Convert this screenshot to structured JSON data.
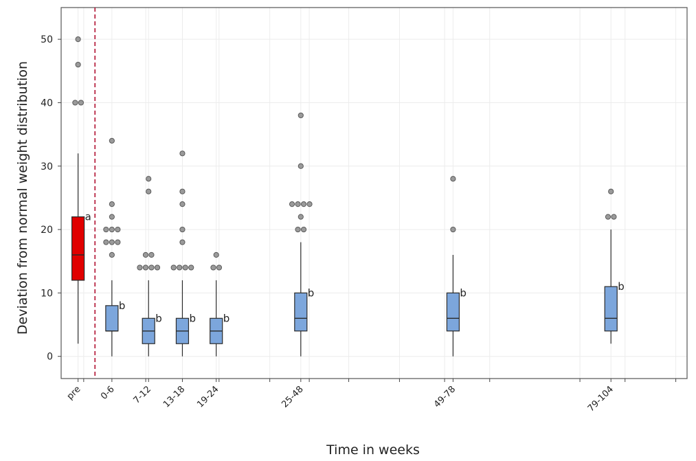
{
  "chart_data": {
    "type": "boxplot",
    "title": "",
    "xlabel": "Time in weeks",
    "ylabel": "Deviation from normal weight distribution",
    "ylim": [
      -3.5,
      55
    ],
    "yticks": [
      0,
      10,
      20,
      30,
      40,
      50
    ],
    "x_axis_weeks": [
      -6,
      105
    ],
    "x_minor_ticks": [
      -2,
      9,
      22,
      31,
      38,
      45,
      54,
      62,
      70,
      86,
      94,
      103
    ],
    "separator_after": "pre",
    "colors": {
      "pre_fill": "#e00000",
      "post_fill": "#7ca6dc",
      "box_stroke": "#2a2a2a",
      "separator": "#b01030",
      "outlier": "#9a9a9a",
      "grid": "#ececec"
    },
    "groups": [
      {
        "label": "pre",
        "pos_weeks": -3,
        "whisker_low": 2,
        "q1": 12,
        "median": 16,
        "q3": 22,
        "whisker_high": 32,
        "outliers": [
          40,
          40,
          46,
          50
        ],
        "letter": "a"
      },
      {
        "label": "0-6",
        "pos_weeks": 3,
        "whisker_low": 0,
        "q1": 4,
        "median": 4,
        "q3": 8,
        "whisker_high": 12,
        "outliers": [
          16,
          18,
          18,
          18,
          20,
          20,
          20,
          22,
          24,
          34
        ],
        "letter": "b"
      },
      {
        "label": "7-12",
        "pos_weeks": 9.5,
        "whisker_low": 0,
        "q1": 2,
        "median": 4,
        "q3": 6,
        "whisker_high": 12,
        "outliers": [
          14,
          14,
          14,
          14,
          16,
          16,
          26,
          28
        ],
        "letter": "b"
      },
      {
        "label": "13-18",
        "pos_weeks": 15.5,
        "whisker_low": 0,
        "q1": 2,
        "median": 4,
        "q3": 6,
        "whisker_high": 12,
        "outliers": [
          14,
          14,
          14,
          14,
          18,
          20,
          24,
          26,
          32
        ],
        "letter": "b"
      },
      {
        "label": "19-24",
        "pos_weeks": 21.5,
        "whisker_low": 0,
        "q1": 2,
        "median": 4,
        "q3": 6,
        "whisker_high": 12,
        "outliers": [
          14,
          14,
          16
        ],
        "letter": "b"
      },
      {
        "label": "25-48",
        "pos_weeks": 36.5,
        "whisker_low": 0,
        "q1": 4,
        "median": 6,
        "q3": 10,
        "whisker_high": 18,
        "outliers": [
          20,
          20,
          22,
          24,
          24,
          24,
          24,
          30,
          38
        ],
        "letter": "b"
      },
      {
        "label": "49-78",
        "pos_weeks": 63.5,
        "whisker_low": 0,
        "q1": 4,
        "median": 6,
        "q3": 10,
        "whisker_high": 16,
        "outliers": [
          20,
          28
        ],
        "letter": "b"
      },
      {
        "label": "79-104",
        "pos_weeks": 91.5,
        "whisker_low": 2,
        "q1": 4,
        "median": 6,
        "q3": 11,
        "whisker_high": 20,
        "outliers": [
          22,
          22,
          26
        ],
        "letter": "b"
      }
    ]
  }
}
